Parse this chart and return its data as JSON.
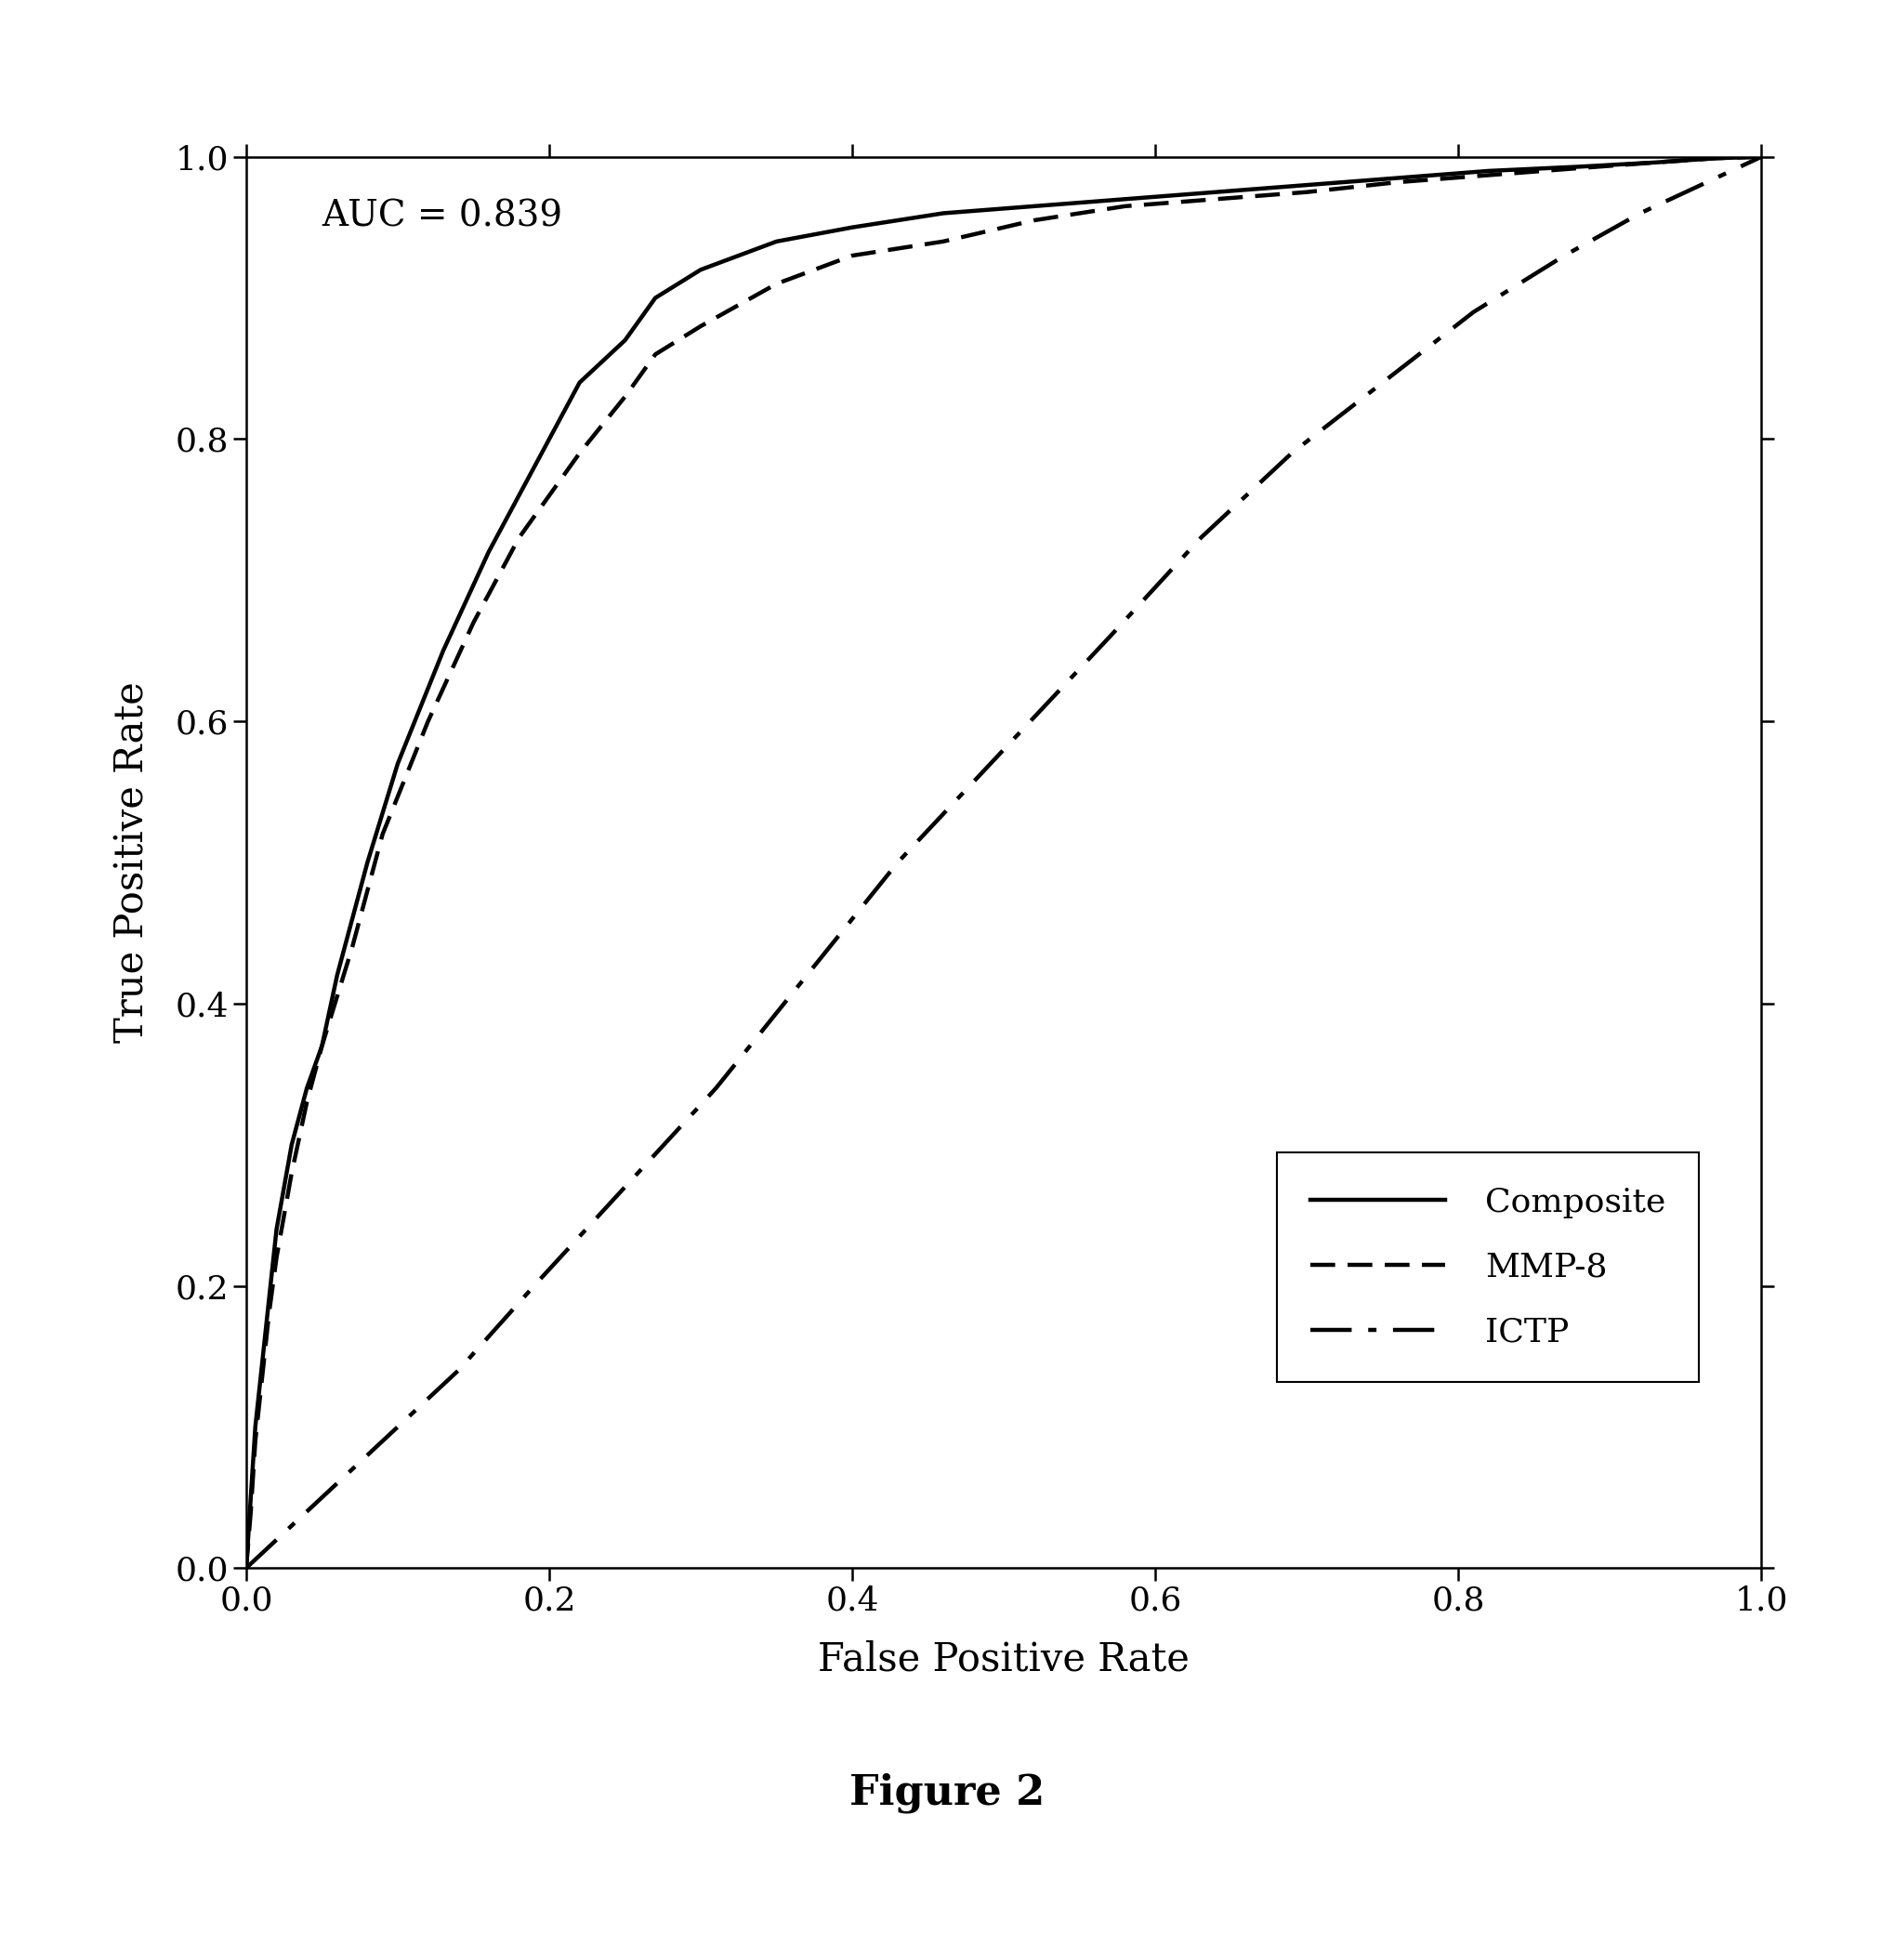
{
  "title": "",
  "xlabel": "False Positive Rate",
  "ylabel": "True Positive Rate",
  "auc_text": "AUC = 0.839",
  "figure_label": "Figure 2",
  "xlim": [
    0.0,
    1.0
  ],
  "ylim": [
    0.0,
    1.0
  ],
  "xticks": [
    0.0,
    0.2,
    0.4,
    0.6,
    0.8,
    1.0
  ],
  "yticks": [
    0.0,
    0.2,
    0.4,
    0.6,
    0.8,
    1.0
  ],
  "composite_x": [
    0.0,
    0.003,
    0.006,
    0.01,
    0.015,
    0.02,
    0.03,
    0.04,
    0.05,
    0.06,
    0.08,
    0.1,
    0.13,
    0.16,
    0.19,
    0.22,
    0.25,
    0.27,
    0.3,
    0.35,
    0.4,
    0.46,
    0.52,
    0.58,
    0.64,
    0.7,
    0.76,
    0.82,
    0.88,
    0.93,
    0.97,
    1.0
  ],
  "composite_y": [
    0.0,
    0.05,
    0.1,
    0.14,
    0.19,
    0.24,
    0.3,
    0.34,
    0.37,
    0.42,
    0.5,
    0.57,
    0.65,
    0.72,
    0.78,
    0.84,
    0.87,
    0.9,
    0.92,
    0.94,
    0.95,
    0.96,
    0.965,
    0.97,
    0.975,
    0.98,
    0.985,
    0.99,
    0.993,
    0.996,
    0.999,
    1.0
  ],
  "mmp8_x": [
    0.0,
    0.003,
    0.006,
    0.01,
    0.015,
    0.02,
    0.03,
    0.04,
    0.05,
    0.07,
    0.09,
    0.12,
    0.15,
    0.18,
    0.22,
    0.25,
    0.27,
    0.3,
    0.35,
    0.4,
    0.46,
    0.52,
    0.58,
    0.64,
    0.7,
    0.76,
    0.82,
    0.88,
    0.93,
    0.97,
    1.0
  ],
  "mmp8_y": [
    0.0,
    0.04,
    0.09,
    0.13,
    0.18,
    0.22,
    0.28,
    0.33,
    0.37,
    0.44,
    0.52,
    0.6,
    0.67,
    0.73,
    0.79,
    0.83,
    0.86,
    0.88,
    0.91,
    0.93,
    0.94,
    0.955,
    0.965,
    0.97,
    0.975,
    0.982,
    0.987,
    0.992,
    0.996,
    0.999,
    1.0
  ],
  "ictp_x": [
    0.0,
    0.02,
    0.05,
    0.09,
    0.14,
    0.19,
    0.25,
    0.31,
    0.37,
    0.43,
    0.5,
    0.57,
    0.63,
    0.69,
    0.75,
    0.81,
    0.87,
    0.92,
    0.96,
    1.0
  ],
  "ictp_y": [
    0.0,
    0.02,
    0.05,
    0.09,
    0.14,
    0.2,
    0.27,
    0.34,
    0.42,
    0.5,
    0.58,
    0.66,
    0.73,
    0.79,
    0.84,
    0.89,
    0.93,
    0.96,
    0.98,
    1.0
  ],
  "line_color": "#000000",
  "background_color": "#ffffff",
  "axis_bg_color": "#ffffff",
  "tick_label_size": 26,
  "axis_label_size": 30,
  "legend_fontsize": 26,
  "auc_fontsize": 28,
  "figure_label_fontsize": 32
}
